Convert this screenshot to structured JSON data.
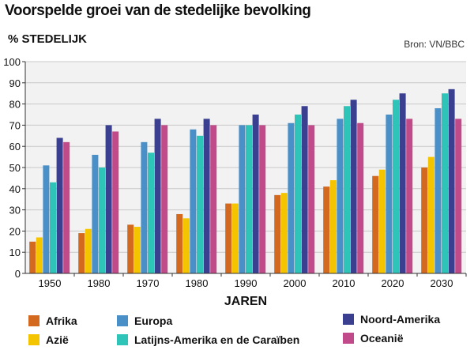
{
  "header": {
    "title": "Voorspelde groei van de stedelijke bevolking",
    "source": "Bron: VN/BBC"
  },
  "chart_data": {
    "type": "bar",
    "ylabel": "% STEDELIJK",
    "xlabel": "JAREN",
    "ylim": [
      0,
      100
    ],
    "yticks": [
      0,
      10,
      20,
      30,
      40,
      50,
      60,
      70,
      80,
      90,
      100
    ],
    "grid": true,
    "legend_position": "bottom",
    "categories": [
      "1950",
      "1980",
      "1970",
      "1980",
      "1990",
      "2000",
      "2010",
      "2020",
      "2030"
    ],
    "series": [
      {
        "name": "Afrika",
        "color": "#d2691e",
        "values": [
          15,
          19,
          23,
          28,
          33,
          37,
          41,
          46,
          50
        ]
      },
      {
        "name": "Azië",
        "color": "#f5c400",
        "values": [
          17,
          21,
          22,
          26,
          33,
          38,
          44,
          49,
          55
        ]
      },
      {
        "name": "Europa",
        "color": "#4a90c8",
        "values": [
          51,
          56,
          62,
          68,
          70,
          71,
          73,
          75,
          78
        ]
      },
      {
        "name": "Latijns-Amerika en de Caraïben",
        "color": "#2ec4b8",
        "values": [
          43,
          50,
          57,
          65,
          70,
          75,
          79,
          82,
          85
        ]
      },
      {
        "name": "Noord-Amerika",
        "color": "#3b3f8f",
        "values": [
          64,
          70,
          73,
          73,
          75,
          79,
          82,
          85,
          87
        ]
      },
      {
        "name": "Oceanië",
        "color": "#c04a8a",
        "values": [
          62,
          67,
          70,
          70,
          70,
          70,
          71,
          73,
          73
        ]
      }
    ]
  }
}
